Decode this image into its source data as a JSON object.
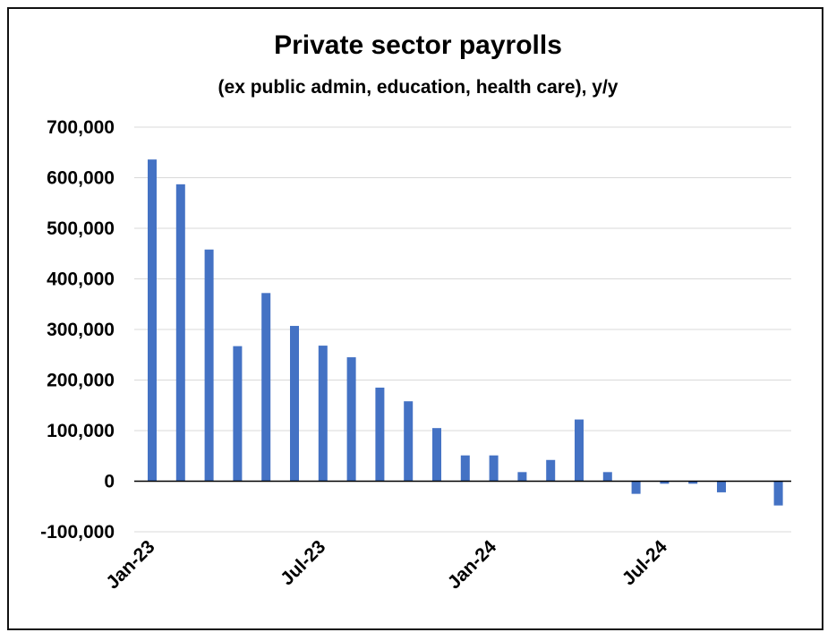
{
  "chart_data": {
    "type": "bar",
    "title": "Private sector payrolls",
    "subtitle": "(ex public admin, education, health care), y/y",
    "xlabel": "",
    "ylabel": "",
    "ylim": [
      -100000,
      700000
    ],
    "y_ticks": [
      -100000,
      0,
      100000,
      200000,
      300000,
      400000,
      500000,
      600000,
      700000
    ],
    "y_tick_labels": [
      "-100,000",
      "0",
      "100,000",
      "200,000",
      "300,000",
      "400,000",
      "500,000",
      "600,000",
      "700,000"
    ],
    "x_tick_labels": [
      "Jan-23",
      "Jul-23",
      "Jan-24",
      "Jul-24"
    ],
    "x_tick_every": 6,
    "grid": true,
    "bar_color": "#4472C4",
    "series": [
      {
        "values": [
          636000,
          587000,
          458000,
          267000,
          372000,
          307000,
          268000,
          245000,
          185000,
          158000,
          105000,
          51000,
          51000,
          18000,
          42000,
          122000,
          18000,
          -25000,
          -5000,
          -5000,
          -22000,
          null,
          -48000
        ]
      }
    ]
  }
}
